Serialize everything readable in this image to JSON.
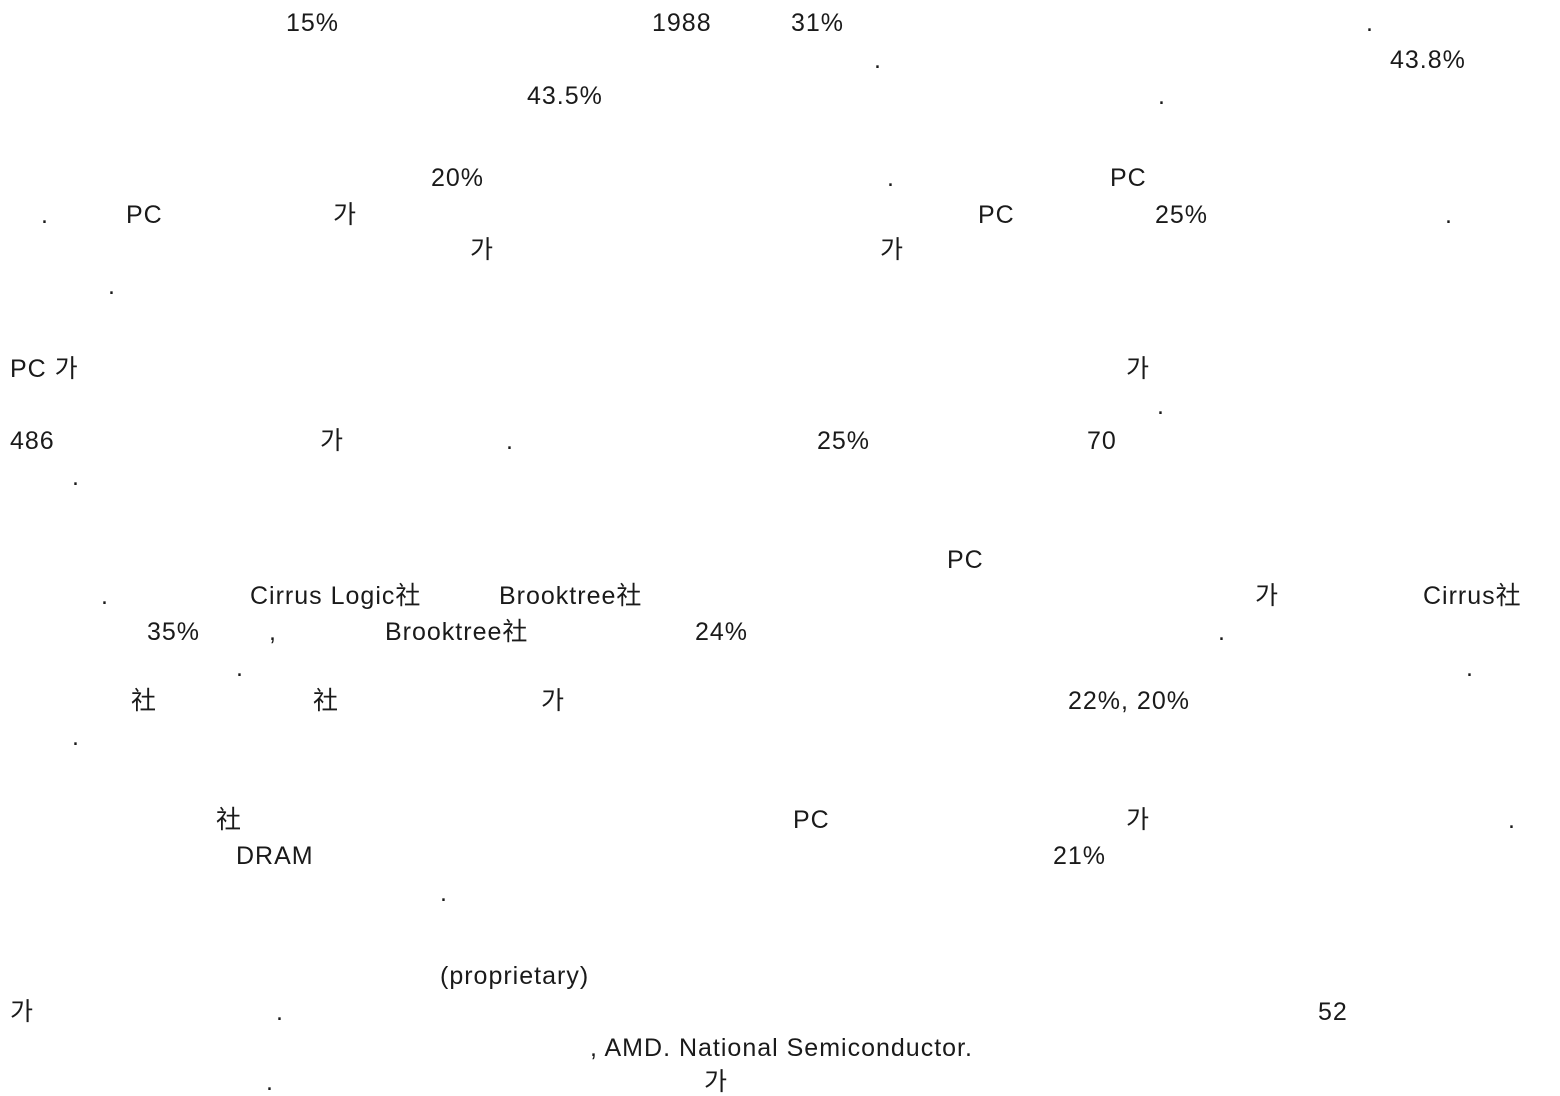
{
  "fragments": [
    {
      "text": "15%"
    },
    {
      "text": "1988"
    },
    {
      "text": "31%"
    },
    {
      "text": "."
    },
    {
      "text": "."
    },
    {
      "text": "43.8%"
    },
    {
      "text": "43.5%"
    },
    {
      "text": "."
    },
    {
      "text": "20%"
    },
    {
      "text": "."
    },
    {
      "text": "PC"
    },
    {
      "text": "."
    },
    {
      "text": "PC"
    },
    {
      "text": "가"
    },
    {
      "text": "PC"
    },
    {
      "text": "25%"
    },
    {
      "text": "."
    },
    {
      "text": "가"
    },
    {
      "text": "가"
    },
    {
      "text": "."
    },
    {
      "text": "PC 가"
    },
    {
      "text": "가"
    },
    {
      "text": "."
    },
    {
      "text": "486"
    },
    {
      "text": "가"
    },
    {
      "text": "."
    },
    {
      "text": "25%"
    },
    {
      "text": "70"
    },
    {
      "text": "."
    },
    {
      "text": "PC"
    },
    {
      "text": "."
    },
    {
      "text": "Cirrus Logic社"
    },
    {
      "text": "Brooktree社"
    },
    {
      "text": "가"
    },
    {
      "text": "Cirrus社"
    },
    {
      "text": "35%"
    },
    {
      "text": ","
    },
    {
      "text": "Brooktree社"
    },
    {
      "text": "24%"
    },
    {
      "text": "."
    },
    {
      "text": "."
    },
    {
      "text": "."
    },
    {
      "text": "社"
    },
    {
      "text": "社"
    },
    {
      "text": "가"
    },
    {
      "text": "22%, 20%"
    },
    {
      "text": "."
    },
    {
      "text": "社"
    },
    {
      "text": "PC"
    },
    {
      "text": "가"
    },
    {
      "text": "."
    },
    {
      "text": "DRAM"
    },
    {
      "text": "21%"
    },
    {
      "text": "."
    },
    {
      "text": "(proprietary)"
    },
    {
      "text": "가"
    },
    {
      "text": "."
    },
    {
      "text": "52"
    },
    {
      "text": ", AMD. National Semiconductor."
    },
    {
      "text": "."
    },
    {
      "text": "가"
    }
  ]
}
